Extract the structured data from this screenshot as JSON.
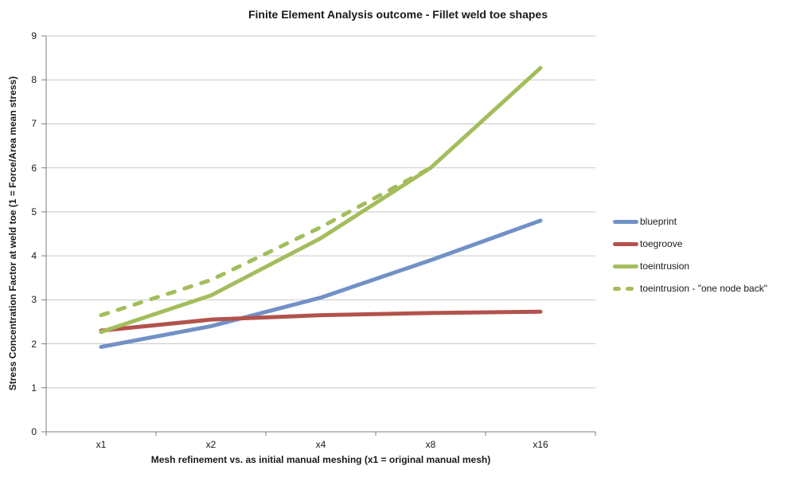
{
  "chart_data": {
    "type": "line",
    "title": "Finite Element Analysis outcome - Fillet weld toe shapes",
    "xlabel": "Mesh refinement vs. as initial manual meshing (x1 = original manual mesh)",
    "ylabel": "Stress Concentration Factor at weld toe (1 = Force/Area mean stress)",
    "categories": [
      "x1",
      "x2",
      "x4",
      "x8",
      "x16"
    ],
    "yticks": [
      0,
      1,
      2,
      3,
      4,
      5,
      6,
      7,
      8,
      9
    ],
    "ylim": [
      0,
      9
    ],
    "grid": true,
    "legend_position": "right",
    "colors": {
      "blue": "#7191C6",
      "red": "#B3524C",
      "green": "#A4BD5C",
      "gridline": "#C9C9C9",
      "axis": "#808080"
    },
    "series": [
      {
        "name": "blueprint",
        "color": "#7191C6",
        "dash": false,
        "values": [
          1.93,
          2.4,
          3.05,
          3.9,
          4.8
        ]
      },
      {
        "name": "toegroove",
        "color": "#B3524C",
        "dash": false,
        "values": [
          2.3,
          2.55,
          2.65,
          2.7,
          2.73
        ]
      },
      {
        "name": "toeintrusion",
        "color": "#A4BD5C",
        "dash": false,
        "values": [
          2.27,
          3.1,
          4.4,
          6.0,
          8.27
        ]
      },
      {
        "name": "toeintrusion - \"one node back\"",
        "color": "#A4BD5C",
        "dash": true,
        "values": [
          2.65,
          3.45,
          4.65,
          6.0,
          null
        ]
      }
    ]
  }
}
